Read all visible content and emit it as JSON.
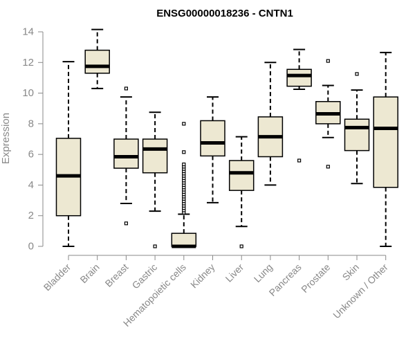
{
  "chart_data": {
    "type": "box",
    "title": "ENSG00000018236 - CNTN1",
    "xlabel": "",
    "ylabel": "Expression",
    "ylim": [
      0,
      14
    ],
    "yticks": [
      "0",
      "2",
      "4",
      "6",
      "8",
      "10",
      "12",
      "14"
    ],
    "categories": [
      "Bladder",
      "Brain",
      "Breast",
      "Gastric",
      "Hematopoietic cells",
      "Kidney",
      "Liver",
      "Lung",
      "Pancreas",
      "Prostate",
      "Skin",
      "Unknown / Other"
    ],
    "boxes": [
      {
        "category": "Bladder",
        "whisker_low": 0.0,
        "q1": 2.0,
        "median": 4.6,
        "q3": 7.05,
        "whisker_high": 12.05,
        "outliers": []
      },
      {
        "category": "Brain",
        "whisker_low": 10.3,
        "q1": 11.3,
        "median": 11.75,
        "q3": 12.8,
        "whisker_high": 14.15,
        "outliers": []
      },
      {
        "category": "Breast",
        "whisker_low": 2.8,
        "q1": 5.1,
        "median": 5.85,
        "q3": 7.0,
        "whisker_high": 9.75,
        "outliers": [
          1.5,
          10.3
        ]
      },
      {
        "category": "Gastric",
        "whisker_low": 2.3,
        "q1": 4.8,
        "median": 6.35,
        "q3": 7.0,
        "whisker_high": 8.75,
        "outliers": [
          0.0
        ]
      },
      {
        "category": "Hematopoietic cells",
        "whisker_low": 0.0,
        "q1": 0.0,
        "median": 0.0,
        "q3": 0.85,
        "whisker_high": 2.1,
        "outliers": [
          2.2,
          2.35,
          2.5,
          2.65,
          2.8,
          2.95,
          3.1,
          3.25,
          3.4,
          3.55,
          3.7,
          3.85,
          4.0,
          4.15,
          4.3,
          4.45,
          4.6,
          4.75,
          4.9,
          5.05,
          5.2,
          5.35,
          6.15,
          8.0
        ]
      },
      {
        "category": "Kidney",
        "whisker_low": 2.85,
        "q1": 5.9,
        "median": 6.75,
        "q3": 8.2,
        "whisker_high": 9.75,
        "outliers": []
      },
      {
        "category": "Liver",
        "whisker_low": 1.3,
        "q1": 3.65,
        "median": 4.8,
        "q3": 5.6,
        "whisker_high": 7.15,
        "outliers": [
          0.0
        ]
      },
      {
        "category": "Lung",
        "whisker_low": 4.0,
        "q1": 5.85,
        "median": 7.15,
        "q3": 8.45,
        "whisker_high": 12.0,
        "outliers": []
      },
      {
        "category": "Pancreas",
        "whisker_low": 10.25,
        "q1": 10.45,
        "median": 11.15,
        "q3": 11.55,
        "whisker_high": 12.85,
        "outliers": [
          5.6
        ]
      },
      {
        "category": "Prostate",
        "whisker_low": 7.1,
        "q1": 8.0,
        "median": 8.65,
        "q3": 9.45,
        "whisker_high": 10.5,
        "outliers": [
          5.2,
          12.1
        ]
      },
      {
        "category": "Skin",
        "whisker_low": 4.1,
        "q1": 6.25,
        "median": 7.75,
        "q3": 8.3,
        "whisker_high": 10.2,
        "outliers": [
          11.25
        ]
      },
      {
        "category": "Unknown / Other",
        "whisker_low": 0.0,
        "q1": 3.85,
        "median": 7.7,
        "q3": 9.75,
        "whisker_high": 12.65,
        "outliers": []
      }
    ],
    "colors": {
      "box_fill": "#EDE8D2",
      "box_stroke": "#000000",
      "axis": "#888888",
      "text": "#888888"
    },
    "grid": false,
    "legend": "none"
  }
}
